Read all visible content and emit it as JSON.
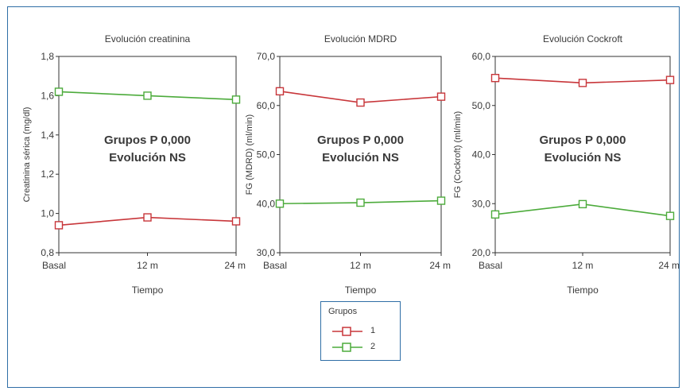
{
  "chart_data": [
    {
      "type": "line",
      "title": "Evolución creatinina",
      "xlabel": "Tiempo",
      "ylabel": "Creatinina sérica (mg/dl)",
      "categories": [
        "Basal",
        "12 m",
        "24 m"
      ],
      "ylim": [
        0.8,
        1.8
      ],
      "yticks": [
        0.8,
        1.0,
        1.2,
        1.4,
        1.6,
        1.8
      ],
      "yticklabels": [
        "0,8",
        "1,0",
        "1,2",
        "1,4",
        "1,6",
        "1,8"
      ],
      "annotation": [
        "Grupos P 0,000",
        "Evolución NS"
      ],
      "series": [
        {
          "name": "1",
          "color": "#c8363a",
          "values": [
            0.94,
            0.98,
            0.96
          ]
        },
        {
          "name": "2",
          "color": "#4cab3b",
          "values": [
            1.62,
            1.6,
            1.58
          ]
        }
      ]
    },
    {
      "type": "line",
      "title": "Evolución MDRD",
      "xlabel": "Tiempo",
      "ylabel": "FG (MDRD) (ml/min)",
      "categories": [
        "Basal",
        "12 m",
        "24 m"
      ],
      "ylim": [
        30,
        70
      ],
      "yticks": [
        30,
        40,
        50,
        60,
        70
      ],
      "yticklabels": [
        "30,0",
        "40,0",
        "50,0",
        "60,0",
        "70,0"
      ],
      "annotation": [
        "Grupos P 0,000",
        "Evolución NS"
      ],
      "series": [
        {
          "name": "1",
          "color": "#c8363a",
          "values": [
            62.9,
            60.6,
            61.8
          ]
        },
        {
          "name": "2",
          "color": "#4cab3b",
          "values": [
            40.0,
            40.2,
            40.6
          ]
        }
      ]
    },
    {
      "type": "line",
      "title": "Evolución Cockroft",
      "xlabel": "Tiempo",
      "ylabel": "FG (Cockroft) (ml/min)",
      "categories": [
        "Basal",
        "12 m",
        "24 m"
      ],
      "ylim": [
        20,
        60
      ],
      "yticks": [
        20,
        30,
        40,
        50,
        60
      ],
      "yticklabels": [
        "20,0",
        "30,0",
        "40,0",
        "50,0",
        "60,0"
      ],
      "annotation": [
        "Grupos P 0,000",
        "Evolución NS"
      ],
      "series": [
        {
          "name": "1",
          "color": "#c8363a",
          "values": [
            55.6,
            54.6,
            55.2
          ]
        },
        {
          "name": "2",
          "color": "#4cab3b",
          "values": [
            27.8,
            29.9,
            27.5
          ]
        }
      ]
    }
  ],
  "legend": {
    "title": "Grupos",
    "items": [
      {
        "label": "1",
        "color": "#c8363a"
      },
      {
        "label": "2",
        "color": "#4cab3b"
      }
    ]
  }
}
